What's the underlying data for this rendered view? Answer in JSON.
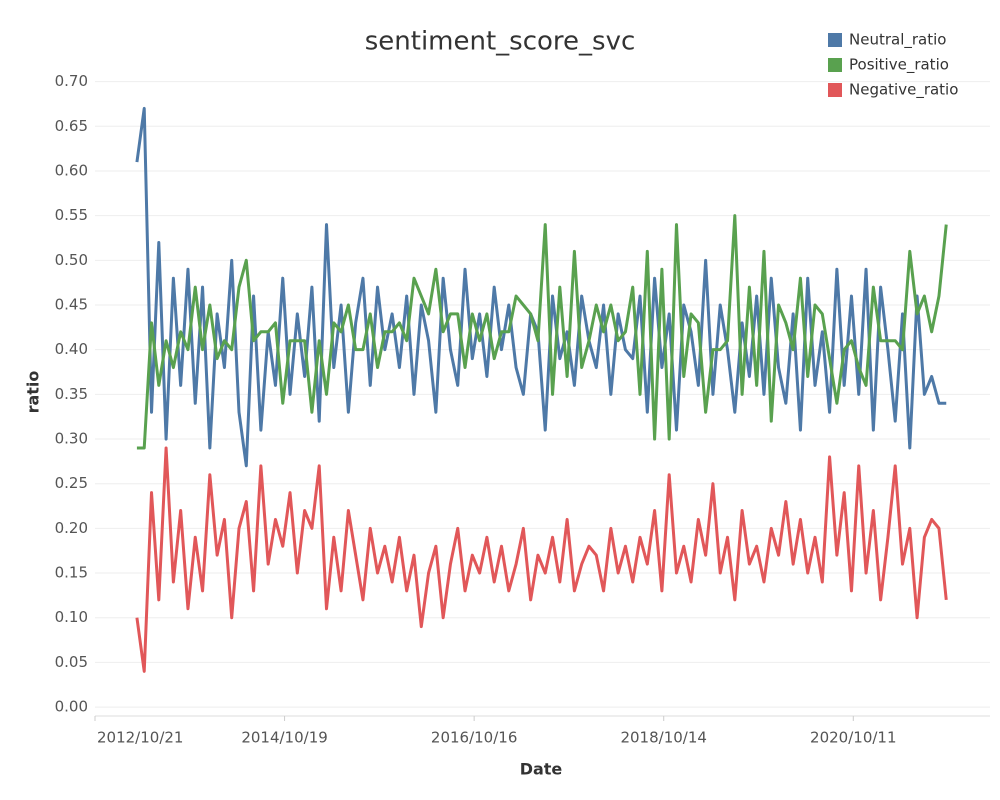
{
  "chart_data": {
    "type": "line",
    "title": "sentiment_score_svc",
    "x_label": "Date",
    "y_label": "ratio",
    "x": [
      "2013/03/31",
      "2013/04/28",
      "2013/05/26",
      "2013/06/23",
      "2013/07/21",
      "2013/08/18",
      "2013/09/15",
      "2013/10/13",
      "2013/11/10",
      "2013/12/08",
      "2014/01/05",
      "2014/02/02",
      "2014/03/02",
      "2014/03/30",
      "2014/04/27",
      "2014/05/25",
      "2014/06/22",
      "2014/07/20",
      "2014/08/17",
      "2014/09/14",
      "2014/10/12",
      "2014/11/09",
      "2014/12/07",
      "2015/01/04",
      "2015/02/01",
      "2015/03/01",
      "2015/03/29",
      "2015/04/26",
      "2015/05/24",
      "2015/06/21",
      "2015/07/19",
      "2015/08/16",
      "2015/09/13",
      "2015/10/11",
      "2015/11/08",
      "2015/12/06",
      "2016/01/03",
      "2016/01/31",
      "2016/02/28",
      "2016/03/27",
      "2016/04/24",
      "2016/05/22",
      "2016/06/19",
      "2016/07/17",
      "2016/08/14",
      "2016/09/11",
      "2016/10/09",
      "2016/11/06",
      "2016/12/04",
      "2017/01/01",
      "2017/01/29",
      "2017/02/26",
      "2017/03/26",
      "2017/04/23",
      "2017/05/21",
      "2017/06/18",
      "2017/07/16",
      "2017/08/13",
      "2017/09/10",
      "2017/10/08",
      "2017/11/05",
      "2017/12/03",
      "2017/12/31",
      "2018/01/28",
      "2018/02/25",
      "2018/03/25",
      "2018/04/22",
      "2018/05/20",
      "2018/06/17",
      "2018/07/15",
      "2018/08/12",
      "2018/09/09",
      "2018/10/07",
      "2018/11/04",
      "2018/12/02",
      "2018/12/30",
      "2019/01/27",
      "2019/02/24",
      "2019/03/24",
      "2019/04/21",
      "2019/05/19",
      "2019/06/16",
      "2019/07/14",
      "2019/08/11",
      "2019/09/08",
      "2019/10/06",
      "2019/11/03",
      "2019/12/01",
      "2019/12/29",
      "2020/01/26",
      "2020/02/23",
      "2020/03/22",
      "2020/04/19",
      "2020/05/17",
      "2020/06/14",
      "2020/07/12",
      "2020/08/09",
      "2020/09/06",
      "2020/10/04",
      "2020/11/01",
      "2020/11/29",
      "2020/12/27",
      "2021/01/24",
      "2021/02/21",
      "2021/03/21",
      "2021/04/18",
      "2021/05/16",
      "2021/06/13",
      "2021/07/11",
      "2021/08/08",
      "2021/09/05",
      "2021/10/03"
    ],
    "series": [
      {
        "name": "Neutral_ratio",
        "color": "#4e79a7",
        "values": [
          0.61,
          0.67,
          0.33,
          0.52,
          0.3,
          0.48,
          0.36,
          0.49,
          0.34,
          0.47,
          0.29,
          0.44,
          0.38,
          0.5,
          0.33,
          0.27,
          0.46,
          0.31,
          0.42,
          0.36,
          0.48,
          0.35,
          0.44,
          0.37,
          0.47,
          0.32,
          0.54,
          0.38,
          0.45,
          0.33,
          0.43,
          0.48,
          0.36,
          0.47,
          0.4,
          0.44,
          0.38,
          0.46,
          0.35,
          0.45,
          0.41,
          0.33,
          0.48,
          0.4,
          0.36,
          0.49,
          0.39,
          0.44,
          0.37,
          0.47,
          0.4,
          0.45,
          0.38,
          0.35,
          0.44,
          0.42,
          0.31,
          0.46,
          0.39,
          0.42,
          0.36,
          0.46,
          0.41,
          0.38,
          0.45,
          0.35,
          0.44,
          0.4,
          0.39,
          0.46,
          0.33,
          0.48,
          0.38,
          0.44,
          0.31,
          0.45,
          0.42,
          0.36,
          0.5,
          0.35,
          0.45,
          0.4,
          0.33,
          0.43,
          0.37,
          0.46,
          0.35,
          0.48,
          0.38,
          0.34,
          0.44,
          0.31,
          0.48,
          0.36,
          0.42,
          0.33,
          0.49,
          0.36,
          0.46,
          0.35,
          0.49,
          0.31,
          0.47,
          0.4,
          0.32,
          0.44,
          0.29,
          0.46,
          0.35,
          0.37,
          0.34,
          0.34
        ]
      },
      {
        "name": "Positive_ratio",
        "color": "#59a14f",
        "values": [
          0.29,
          0.29,
          0.43,
          0.36,
          0.41,
          0.38,
          0.42,
          0.4,
          0.47,
          0.4,
          0.45,
          0.39,
          0.41,
          0.4,
          0.47,
          0.5,
          0.41,
          0.42,
          0.42,
          0.43,
          0.34,
          0.41,
          0.41,
          0.41,
          0.33,
          0.41,
          0.35,
          0.43,
          0.42,
          0.45,
          0.4,
          0.4,
          0.44,
          0.38,
          0.42,
          0.42,
          0.43,
          0.41,
          0.48,
          0.46,
          0.44,
          0.49,
          0.42,
          0.44,
          0.44,
          0.38,
          0.44,
          0.41,
          0.44,
          0.39,
          0.42,
          0.42,
          0.46,
          0.45,
          0.44,
          0.41,
          0.54,
          0.35,
          0.47,
          0.37,
          0.51,
          0.38,
          0.41,
          0.45,
          0.42,
          0.45,
          0.41,
          0.42,
          0.47,
          0.35,
          0.51,
          0.3,
          0.49,
          0.3,
          0.54,
          0.37,
          0.44,
          0.43,
          0.33,
          0.4,
          0.4,
          0.41,
          0.55,
          0.35,
          0.47,
          0.36,
          0.51,
          0.32,
          0.45,
          0.43,
          0.4,
          0.48,
          0.37,
          0.45,
          0.44,
          0.39,
          0.34,
          0.4,
          0.41,
          0.38,
          0.36,
          0.47,
          0.41,
          0.41,
          0.41,
          0.4,
          0.51,
          0.44,
          0.46,
          0.42,
          0.46,
          0.54
        ]
      },
      {
        "name": "Negative_ratio",
        "color": "#e15759",
        "values": [
          0.1,
          0.04,
          0.24,
          0.12,
          0.29,
          0.14,
          0.22,
          0.11,
          0.19,
          0.13,
          0.26,
          0.17,
          0.21,
          0.1,
          0.2,
          0.23,
          0.13,
          0.27,
          0.16,
          0.21,
          0.18,
          0.24,
          0.15,
          0.22,
          0.2,
          0.27,
          0.11,
          0.19,
          0.13,
          0.22,
          0.17,
          0.12,
          0.2,
          0.15,
          0.18,
          0.14,
          0.19,
          0.13,
          0.17,
          0.09,
          0.15,
          0.18,
          0.1,
          0.16,
          0.2,
          0.13,
          0.17,
          0.15,
          0.19,
          0.14,
          0.18,
          0.13,
          0.16,
          0.2,
          0.12,
          0.17,
          0.15,
          0.19,
          0.14,
          0.21,
          0.13,
          0.16,
          0.18,
          0.17,
          0.13,
          0.2,
          0.15,
          0.18,
          0.14,
          0.19,
          0.16,
          0.22,
          0.13,
          0.26,
          0.15,
          0.18,
          0.14,
          0.21,
          0.17,
          0.25,
          0.15,
          0.19,
          0.12,
          0.22,
          0.16,
          0.18,
          0.14,
          0.2,
          0.17,
          0.23,
          0.16,
          0.21,
          0.15,
          0.19,
          0.14,
          0.28,
          0.17,
          0.24,
          0.13,
          0.27,
          0.15,
          0.22,
          0.12,
          0.19,
          0.27,
          0.16,
          0.2,
          0.1,
          0.19,
          0.21,
          0.2,
          0.12
        ]
      }
    ],
    "xlim": [
      "2012/10/21",
      "2022/03/20"
    ],
    "xticks": [
      "2012/10/21",
      "2014/10/19",
      "2016/10/16",
      "2018/10/14",
      "2020/10/11"
    ],
    "ylim": [
      -0.01,
      0.713
    ],
    "yticks": [
      {
        "value": 0,
        "label": "0.00"
      },
      0.05,
      {
        "value": 0.1,
        "label": "0.10"
      },
      0.15,
      {
        "value": 0.2,
        "label": "0.20"
      },
      0.25,
      {
        "value": 0.3,
        "label": "0.30"
      },
      0.35,
      {
        "value": 0.4,
        "label": "0.40"
      },
      0.45,
      {
        "value": 0.5,
        "label": "0.50"
      },
      0.55,
      {
        "value": 0.6,
        "label": "0.60"
      },
      0.65,
      {
        "value": 0.7,
        "label": "0.70"
      }
    ],
    "grid": true,
    "legend": "top-right"
  }
}
